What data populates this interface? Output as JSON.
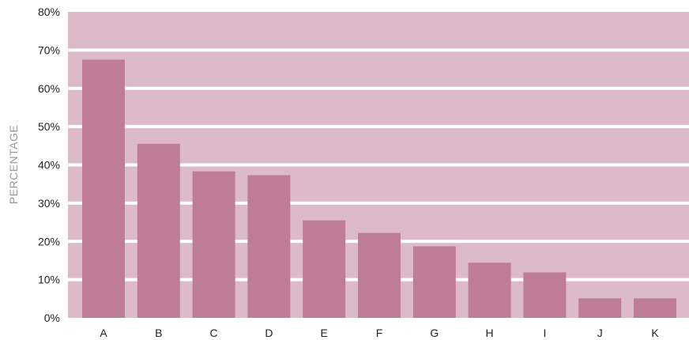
{
  "colors": {
    "band": "#ddbac8",
    "band_separator": "#ffffff",
    "bar": "#bf7c95",
    "text": "#222222",
    "ylabel_text": "#9a9a9a"
  },
  "chart_data": {
    "type": "bar",
    "title": "",
    "xlabel": "",
    "ylabel": "PERCENTAGE",
    "ylim": [
      0,
      80
    ],
    "yticks": [
      0,
      10,
      20,
      30,
      40,
      50,
      60,
      70,
      80
    ],
    "ytick_labels": [
      "0%",
      "10%",
      "20%",
      "30%",
      "40%",
      "50%",
      "60%",
      "70%",
      "80%"
    ],
    "categories": [
      "A",
      "B",
      "C",
      "D",
      "E",
      "F",
      "G",
      "H",
      "I",
      "J",
      "K"
    ],
    "values": [
      67.5,
      45.5,
      38.3,
      37.3,
      25.5,
      22.2,
      18.7,
      14.4,
      11.9,
      5.1,
      5.1
    ],
    "grid": true,
    "legend": "none"
  }
}
